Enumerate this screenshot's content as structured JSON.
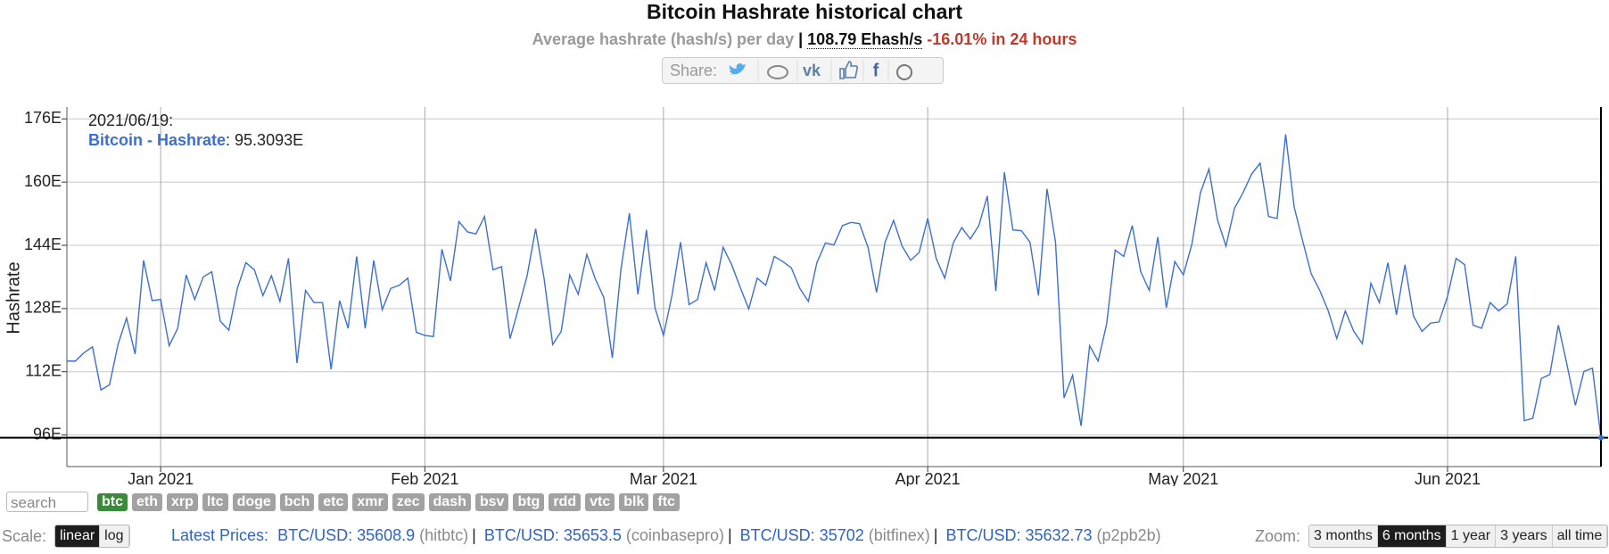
{
  "chart_data": {
    "type": "line",
    "title": "Bitcoin Hashrate historical chart",
    "y_label": "Hashrate",
    "grid": true,
    "x": [
      "2020/12/21",
      "2020/12/22",
      "2020/12/23",
      "2020/12/24",
      "2020/12/25",
      "2020/12/26",
      "2020/12/27",
      "2020/12/28",
      "2020/12/29",
      "2020/12/30",
      "2020/12/31",
      "2021/01/01",
      "2021/01/02",
      "2021/01/03",
      "2021/01/04",
      "2021/01/05",
      "2021/01/06",
      "2021/01/07",
      "2021/01/08",
      "2021/01/09",
      "2021/01/10",
      "2021/01/11",
      "2021/01/12",
      "2021/01/13",
      "2021/01/14",
      "2021/01/15",
      "2021/01/16",
      "2021/01/17",
      "2021/01/18",
      "2021/01/19",
      "2021/01/20",
      "2021/01/21",
      "2021/01/22",
      "2021/01/23",
      "2021/01/24",
      "2021/01/25",
      "2021/01/26",
      "2021/01/27",
      "2021/01/28",
      "2021/01/29",
      "2021/01/30",
      "2021/01/31",
      "2021/02/01",
      "2021/02/02",
      "2021/02/03",
      "2021/02/04",
      "2021/02/05",
      "2021/02/06",
      "2021/02/07",
      "2021/02/08",
      "2021/02/09",
      "2021/02/10",
      "2021/02/11",
      "2021/02/12",
      "2021/02/13",
      "2021/02/14",
      "2021/02/15",
      "2021/02/16",
      "2021/02/17",
      "2021/02/18",
      "2021/02/19",
      "2021/02/20",
      "2021/02/21",
      "2021/02/22",
      "2021/02/23",
      "2021/02/24",
      "2021/02/25",
      "2021/02/26",
      "2021/02/27",
      "2021/02/28",
      "2021/03/01",
      "2021/03/02",
      "2021/03/03",
      "2021/03/04",
      "2021/03/05",
      "2021/03/06",
      "2021/03/07",
      "2021/03/08",
      "2021/03/09",
      "2021/03/10",
      "2021/03/11",
      "2021/03/12",
      "2021/03/13",
      "2021/03/14",
      "2021/03/15",
      "2021/03/16",
      "2021/03/17",
      "2021/03/18",
      "2021/03/19",
      "2021/03/20",
      "2021/03/21",
      "2021/03/22",
      "2021/03/23",
      "2021/03/24",
      "2021/03/25",
      "2021/03/26",
      "2021/03/27",
      "2021/03/28",
      "2021/03/29",
      "2021/03/30",
      "2021/03/31",
      "2021/04/01",
      "2021/04/02",
      "2021/04/03",
      "2021/04/04",
      "2021/04/05",
      "2021/04/06",
      "2021/04/07",
      "2021/04/08",
      "2021/04/09",
      "2021/04/10",
      "2021/04/11",
      "2021/04/12",
      "2021/04/13",
      "2021/04/14",
      "2021/04/15",
      "2021/04/16",
      "2021/04/17",
      "2021/04/18",
      "2021/04/19",
      "2021/04/20",
      "2021/04/21",
      "2021/04/22",
      "2021/04/23",
      "2021/04/24",
      "2021/04/25",
      "2021/04/26",
      "2021/04/27",
      "2021/04/28",
      "2021/04/29",
      "2021/04/30",
      "2021/05/01",
      "2021/05/02",
      "2021/05/03",
      "2021/05/04",
      "2021/05/05",
      "2021/05/06",
      "2021/05/07",
      "2021/05/08",
      "2021/05/09",
      "2021/05/10",
      "2021/05/11",
      "2021/05/12",
      "2021/05/13",
      "2021/05/14",
      "2021/05/15",
      "2021/05/16",
      "2021/05/17",
      "2021/05/18",
      "2021/05/19",
      "2021/05/20",
      "2021/05/21",
      "2021/05/22",
      "2021/05/23",
      "2021/05/24",
      "2021/05/25",
      "2021/05/26",
      "2021/05/27",
      "2021/05/28",
      "2021/05/29",
      "2021/05/30",
      "2021/05/31",
      "2021/06/01",
      "2021/06/02",
      "2021/06/03",
      "2021/06/04",
      "2021/06/05",
      "2021/06/06",
      "2021/06/07",
      "2021/06/08",
      "2021/06/09",
      "2021/06/10",
      "2021/06/11",
      "2021/06/12",
      "2021/06/13",
      "2021/06/14",
      "2021/06/15",
      "2021/06/16",
      "2021/06/17",
      "2021/06/18",
      "2021/06/19"
    ],
    "series": [
      {
        "name": "Bitcoin - Hashrate",
        "color": "#3d6fd1",
        "values": [
          114.7,
          114.7,
          116.8,
          118.3,
          107.4,
          108.7,
          118.9,
          125.6,
          116.5,
          140.2,
          130.0,
          130.3,
          118.6,
          123.0,
          136.5,
          130.3,
          136.0,
          137.3,
          124.8,
          122.5,
          133.1,
          139.6,
          137.8,
          131.3,
          136.3,
          129.8,
          140.7,
          114.2,
          132.6,
          129.5,
          129.5,
          112.6,
          130.0,
          123.0,
          141.2,
          123.0,
          140.2,
          127.7,
          133.1,
          133.9,
          135.7,
          122.0,
          121.2,
          120.9,
          143.0,
          135.0,
          150.0,
          147.4,
          146.9,
          151.3,
          137.8,
          138.6,
          120.4,
          128.2,
          136.3,
          148.2,
          135.5,
          118.9,
          122.2,
          136.5,
          131.6,
          141.7,
          135.5,
          130.8,
          115.5,
          137.8,
          152.1,
          131.6,
          147.9,
          128.2,
          121.2,
          131.3,
          144.8,
          129.0,
          130.3,
          139.6,
          132.6,
          143.5,
          139.1,
          133.4,
          127.9,
          135.7,
          133.9,
          141.2,
          139.9,
          138.3,
          133.1,
          129.8,
          139.6,
          144.6,
          144.1,
          149.0,
          149.8,
          149.5,
          143.5,
          132.1,
          144.8,
          150.3,
          143.8,
          140.2,
          142.2,
          150.8,
          140.7,
          135.7,
          144.6,
          148.5,
          145.6,
          149.0,
          156.5,
          132.4,
          162.5,
          147.9,
          147.7,
          144.8,
          131.3,
          158.3,
          144.8,
          105.4,
          111.1,
          98.3,
          118.6,
          114.7,
          124.1,
          142.8,
          141.2,
          149.0,
          137.3,
          132.6,
          146.1,
          128.2,
          139.9,
          136.5,
          144.3,
          157.3,
          163.3,
          150.5,
          143.8,
          153.4,
          157.3,
          162.0,
          164.8,
          151.3,
          150.8,
          172.1,
          153.7,
          145.1,
          136.8,
          132.6,
          127.4,
          120.4,
          127.4,
          122.2,
          119.1,
          134.4,
          129.5,
          139.6,
          126.4,
          139.1,
          126.1,
          122.2,
          124.3,
          124.6,
          131.1,
          140.7,
          139.1,
          123.8,
          123.0,
          129.5,
          127.4,
          129.2,
          141.2,
          99.6,
          100.2,
          110.3,
          111.3,
          123.8,
          113.9,
          103.5,
          112.1,
          112.9,
          95.3093
        ]
      }
    ],
    "xlim": [
      "2020/12/21",
      "2021/06/19"
    ],
    "xticks": [
      {
        "value": "2021/01/01",
        "label": "Jan 2021"
      },
      {
        "value": "2021/02/01",
        "label": "Feb 2021"
      },
      {
        "value": "2021/03/01",
        "label": "Mar 2021"
      },
      {
        "value": "2021/04/01",
        "label": "Apr 2021"
      },
      {
        "value": "2021/05/01",
        "label": "May 2021"
      },
      {
        "value": "2021/06/01",
        "label": "Jun 2021"
      }
    ],
    "ylim": [
      88,
      179
    ],
    "yticks": [
      {
        "value": 96,
        "label": "96E"
      },
      {
        "value": 112,
        "label": "112E"
      },
      {
        "value": 128,
        "label": "128E"
      },
      {
        "value": 144,
        "label": "144E"
      },
      {
        "value": 160,
        "label": "160E"
      },
      {
        "value": 176,
        "label": "176E"
      }
    ],
    "tooltip": {
      "date": "2021/06/19:",
      "series": "Bitcoin - Hashrate",
      "value": ": 95.3093E"
    }
  },
  "subtitle": {
    "label": "Average hashrate (hash/s) per day",
    "separator": "|",
    "current": "108.79 Ehash/s",
    "change": "-16.01% in 24 hours"
  },
  "share": {
    "label": "Share:"
  },
  "search": {
    "placeholder": "search"
  },
  "coins": [
    "btc",
    "eth",
    "xrp",
    "ltc",
    "doge",
    "bch",
    "etc",
    "xmr",
    "zec",
    "dash",
    "bsv",
    "btg",
    "rdd",
    "vtc",
    "blk",
    "ftc"
  ],
  "scale": {
    "label": "Scale:",
    "options": [
      "linear",
      "log"
    ]
  },
  "prices": {
    "label": "Latest Prices:",
    "separator": "|",
    "items": [
      {
        "pair": "BTC/USD: 35608.9",
        "source": "(hitbtc)"
      },
      {
        "pair": "BTC/USD: 35653.5",
        "source": "(coinbasepro)"
      },
      {
        "pair": "BTC/USD: 35702",
        "source": "(bitfinex)"
      },
      {
        "pair": "BTC/USD: 35632.73",
        "source": "(p2pb2b)"
      }
    ]
  },
  "zoom": {
    "label": "Zoom:",
    "options": [
      "3 months",
      "6 months",
      "1 year",
      "3 years",
      "all time"
    ]
  }
}
